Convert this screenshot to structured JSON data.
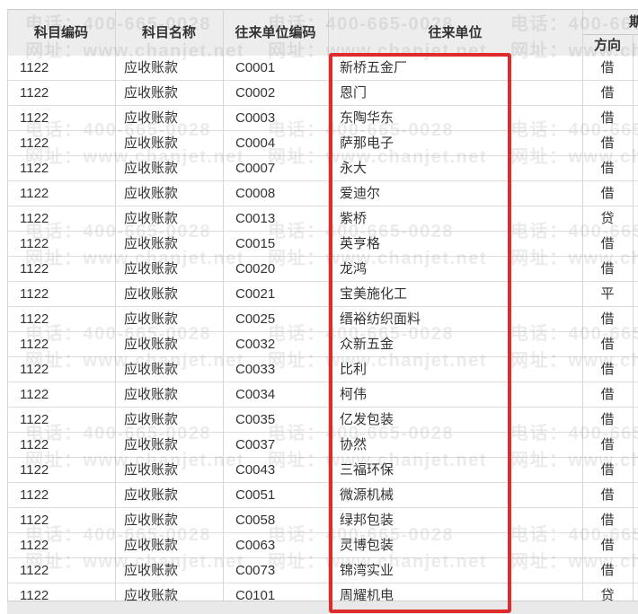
{
  "watermark": {
    "phone": "电话：400-665-0028",
    "website": "网址：www.chanjet.net"
  },
  "header": {
    "subject_code": "科目编码",
    "subject_name": "科目名称",
    "partner_code": "往来单位编码",
    "partner_name": "往来单位",
    "opening_balance_group": "期初余额",
    "direction": "方向"
  },
  "rows": [
    {
      "subject_code": "1122",
      "subject_name": "应收账款",
      "partner_code": "C0001",
      "partner_name": "新桥五金厂",
      "direction": "借"
    },
    {
      "subject_code": "1122",
      "subject_name": "应收账款",
      "partner_code": "C0002",
      "partner_name": "恩门",
      "direction": "借"
    },
    {
      "subject_code": "1122",
      "subject_name": "应收账款",
      "partner_code": "C0003",
      "partner_name": "东陶华东",
      "direction": "借"
    },
    {
      "subject_code": "1122",
      "subject_name": "应收账款",
      "partner_code": "C0004",
      "partner_name": "萨那电子",
      "direction": "借"
    },
    {
      "subject_code": "1122",
      "subject_name": "应收账款",
      "partner_code": "C0007",
      "partner_name": "永大",
      "direction": "借"
    },
    {
      "subject_code": "1122",
      "subject_name": "应收账款",
      "partner_code": "C0008",
      "partner_name": "爱迪尔",
      "direction": "借"
    },
    {
      "subject_code": "1122",
      "subject_name": "应收账款",
      "partner_code": "C0013",
      "partner_name": "紫桥",
      "direction": "贷"
    },
    {
      "subject_code": "1122",
      "subject_name": "应收账款",
      "partner_code": "C0015",
      "partner_name": "英亨格",
      "direction": "借"
    },
    {
      "subject_code": "1122",
      "subject_name": "应收账款",
      "partner_code": "C0020",
      "partner_name": "龙鸿",
      "direction": "借"
    },
    {
      "subject_code": "1122",
      "subject_name": "应收账款",
      "partner_code": "C0021",
      "partner_name": "宝美施化工",
      "direction": "平"
    },
    {
      "subject_code": "1122",
      "subject_name": "应收账款",
      "partner_code": "C0025",
      "partner_name": "缙裕纺织面料",
      "direction": "借"
    },
    {
      "subject_code": "1122",
      "subject_name": "应收账款",
      "partner_code": "C0032",
      "partner_name": "众新五金",
      "direction": "借"
    },
    {
      "subject_code": "1122",
      "subject_name": "应收账款",
      "partner_code": "C0033",
      "partner_name": "比利",
      "direction": "借"
    },
    {
      "subject_code": "1122",
      "subject_name": "应收账款",
      "partner_code": "C0034",
      "partner_name": "柯伟",
      "direction": "借"
    },
    {
      "subject_code": "1122",
      "subject_name": "应收账款",
      "partner_code": "C0035",
      "partner_name": "亿发包装",
      "direction": "借"
    },
    {
      "subject_code": "1122",
      "subject_name": "应收账款",
      "partner_code": "C0037",
      "partner_name": "协然",
      "direction": "借"
    },
    {
      "subject_code": "1122",
      "subject_name": "应收账款",
      "partner_code": "C0043",
      "partner_name": "三福环保",
      "direction": "借"
    },
    {
      "subject_code": "1122",
      "subject_name": "应收账款",
      "partner_code": "C0051",
      "partner_name": "微源机械",
      "direction": "借"
    },
    {
      "subject_code": "1122",
      "subject_name": "应收账款",
      "partner_code": "C0058",
      "partner_name": "绿邦包装",
      "direction": "借"
    },
    {
      "subject_code": "1122",
      "subject_name": "应收账款",
      "partner_code": "C0063",
      "partner_name": "灵博包装",
      "direction": "借"
    },
    {
      "subject_code": "1122",
      "subject_name": "应收账款",
      "partner_code": "C0073",
      "partner_name": "锦湾实业",
      "direction": "借"
    },
    {
      "subject_code": "1122",
      "subject_name": "应收账款",
      "partner_code": "C0101",
      "partner_name": "周耀机电",
      "direction": "贷"
    }
  ],
  "colors": {
    "annotation_red": "#df2b2b",
    "header_bg": "#ededed",
    "row_border": "#dcdcdc"
  }
}
